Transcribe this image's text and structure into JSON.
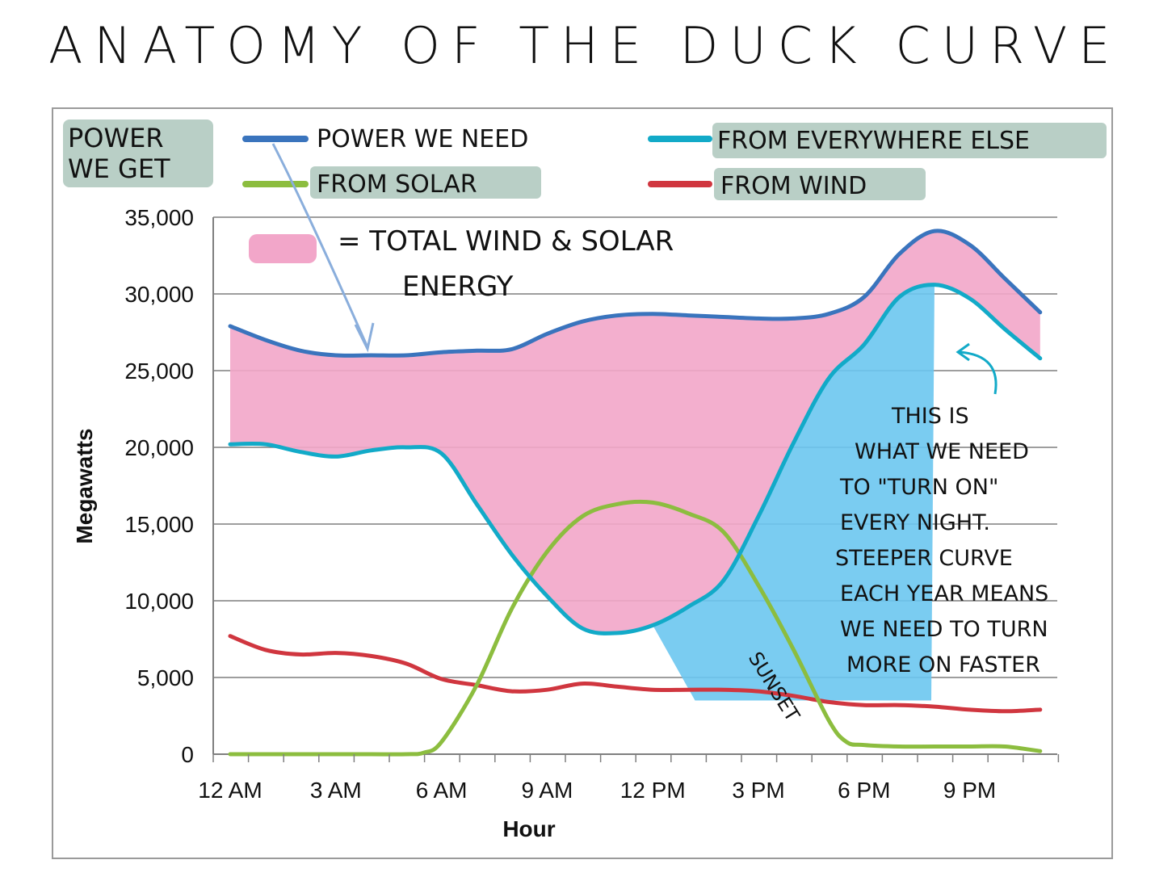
{
  "page_title": "ANATOMY OF THE DUCK CURVE",
  "legend_heading": "POWER WE GET",
  "colors": {
    "demand": "#3a74bd",
    "everywhere_else": "#12aac8",
    "solar": "#8cbd3f",
    "wind": "#d0363f",
    "wind_solar_fill": "#f2a6c9",
    "ramp_fill": "#6cc6ef",
    "legend_highlight": "#b9cfc6",
    "arrow": "#8aaedc",
    "sunset_text": "#2e8a3a",
    "grid": "#7f7f7f"
  },
  "annotations": {
    "fill_legend": "= TOTAL WIND & SOLAR",
    "fill_legend_2": "ENERGY",
    "sunset": "SUNSET",
    "ramp_note": [
      "THIS IS",
      "WHAT WE NEED",
      "TO \"TURN ON\"",
      "EVERY NIGHT.",
      "STEEPER CURVE",
      "EACH YEAR MEANS",
      "WE NEED TO TURN",
      "MORE ON FASTER"
    ]
  },
  "chart_data": {
    "type": "line",
    "xlabel": "Hour",
    "ylabel": "Megawatts",
    "ylim": [
      0,
      35000
    ],
    "yticks": [
      0,
      5000,
      10000,
      15000,
      20000,
      25000,
      30000,
      35000
    ],
    "ytick_labels": [
      "0",
      "5,000",
      "10,000",
      "15,000",
      "20,000",
      "25,000",
      "30,000",
      "35,000"
    ],
    "xlim": [
      0,
      24
    ],
    "xticks": [
      0,
      3,
      6,
      9,
      12,
      15,
      18,
      21
    ],
    "xtick_labels": [
      "12 AM",
      "3 AM",
      "6 AM",
      "9 AM",
      "12 PM",
      "3 PM",
      "6 PM",
      "9 PM"
    ],
    "grid": true,
    "legend_position": "top",
    "series": [
      {
        "key": "demand",
        "name": "POWER WE NEED",
        "x": [
          0,
          1,
          2,
          3,
          4,
          5,
          6,
          7,
          8,
          9,
          10,
          11,
          12,
          13,
          14,
          15,
          16,
          17,
          18,
          19,
          20,
          21,
          22,
          23
        ],
        "values": [
          27900,
          27000,
          26300,
          26000,
          26000,
          26000,
          26200,
          26300,
          26400,
          27400,
          28200,
          28600,
          28700,
          28600,
          28500,
          28400,
          28400,
          28700,
          29800,
          32600,
          34100,
          33200,
          31000,
          28800
        ]
      },
      {
        "key": "everywhere_else",
        "name": "FROM EVERYWHERE ELSE",
        "x": [
          0,
          1,
          2,
          3,
          4,
          5,
          6,
          7,
          8,
          9,
          10,
          11,
          12,
          13,
          14,
          15,
          16,
          17,
          18,
          19,
          20,
          21,
          22,
          23
        ],
        "values": [
          20200,
          20200,
          19700,
          19400,
          19800,
          20000,
          19600,
          16300,
          13000,
          10300,
          8200,
          7900,
          8400,
          9600,
          11300,
          15500,
          20300,
          24500,
          26700,
          29800,
          30600,
          29700,
          27700,
          25800
        ]
      },
      {
        "key": "solar",
        "name": "FROM SOLAR",
        "x": [
          0,
          1,
          2,
          3,
          4,
          5,
          5.5,
          6,
          7,
          8,
          9,
          10,
          11,
          12,
          13,
          14,
          15,
          16,
          17,
          17.5,
          18,
          19,
          20,
          21,
          22,
          23
        ],
        "values": [
          0,
          0,
          0,
          0,
          0,
          0,
          100,
          800,
          4500,
          9500,
          13200,
          15500,
          16300,
          16400,
          15700,
          14500,
          11000,
          6800,
          2200,
          800,
          600,
          500,
          500,
          500,
          500,
          200
        ]
      },
      {
        "key": "wind",
        "name": "FROM WIND",
        "x": [
          0,
          1,
          2,
          3,
          4,
          5,
          6,
          7,
          8,
          9,
          10,
          11,
          12,
          13,
          14,
          15,
          16,
          17,
          18,
          19,
          20,
          21,
          22,
          23
        ],
        "values": [
          7700,
          6800,
          6500,
          6600,
          6400,
          5900,
          4900,
          4500,
          4100,
          4200,
          4600,
          4400,
          4200,
          4200,
          4200,
          4100,
          3800,
          3400,
          3200,
          3200,
          3100,
          2900,
          2800,
          2900
        ]
      }
    ]
  }
}
